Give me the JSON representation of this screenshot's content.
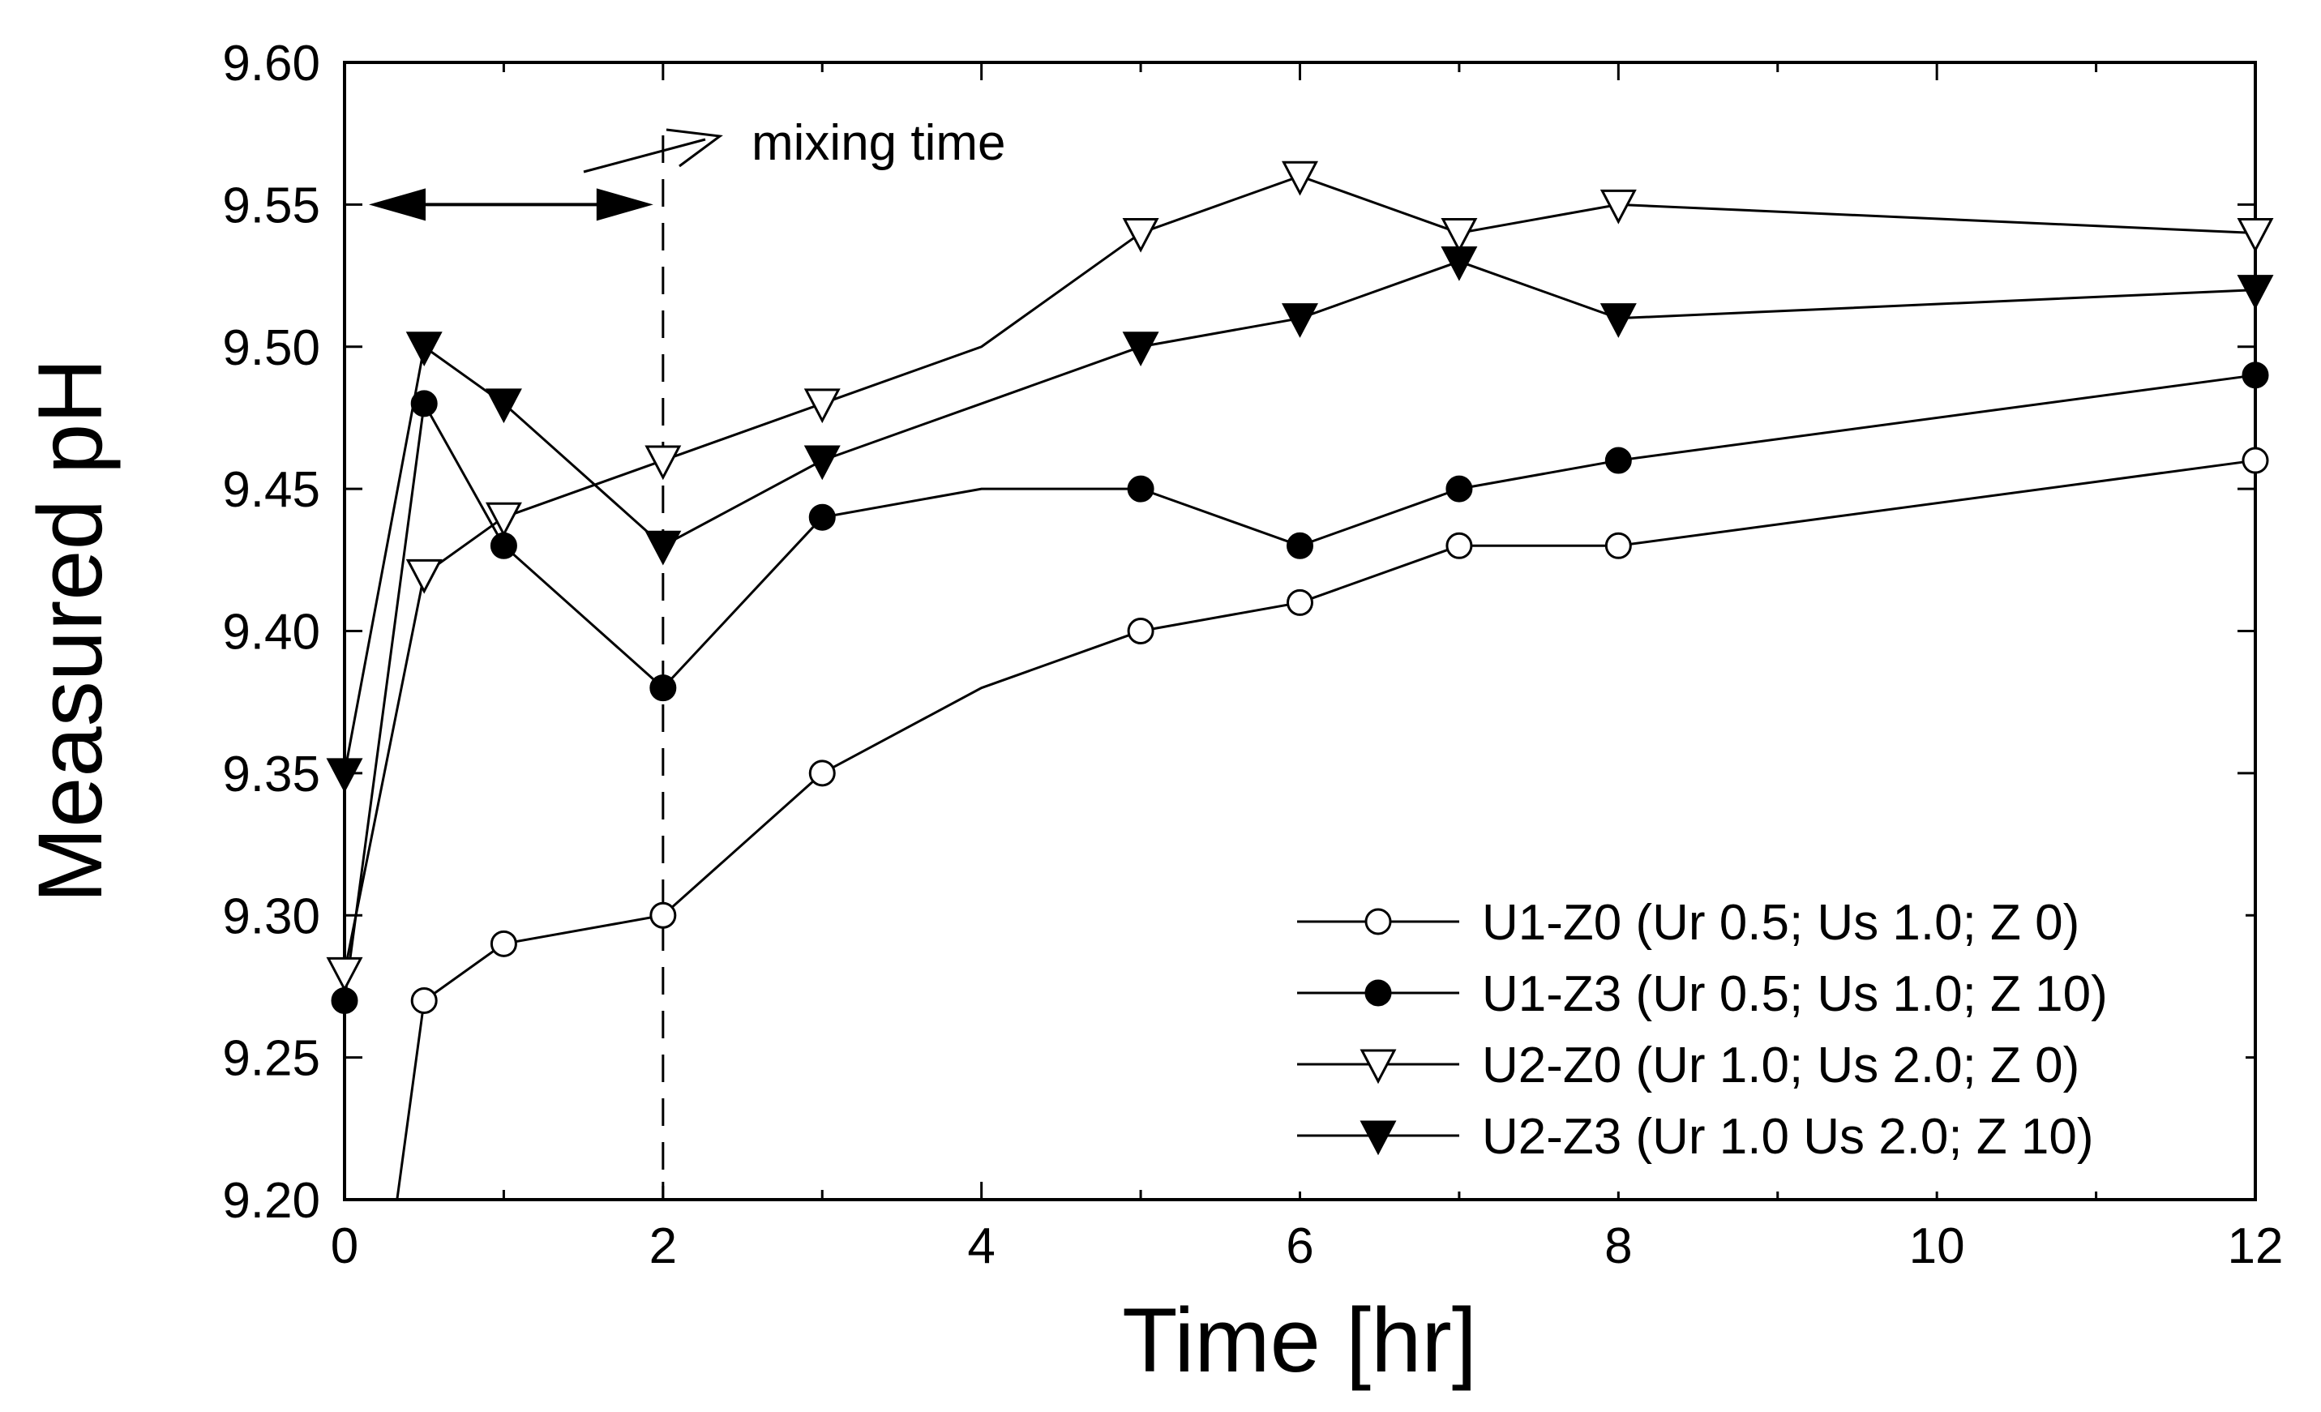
{
  "chart_data": {
    "type": "line",
    "title": "",
    "xlabel": "Time [hr]",
    "ylabel": "Measured pH",
    "xlim": [
      0,
      12
    ],
    "ylim": [
      9.2,
      9.6
    ],
    "xticks": [
      0,
      2,
      4,
      6,
      8,
      10,
      12
    ],
    "yticks": [
      9.2,
      9.25,
      9.3,
      9.35,
      9.4,
      9.45,
      9.5,
      9.55,
      9.6
    ],
    "xtick_labels": [
      "0",
      "2",
      "4",
      "6",
      "8",
      "10",
      "12"
    ],
    "ytick_labels": [
      "9.20",
      "9.25",
      "9.30",
      "9.35",
      "9.40",
      "9.45",
      "9.50",
      "9.55",
      "9.60"
    ],
    "grid": false,
    "legend_position": "bottom-right",
    "series": [
      {
        "name": "U1-Z0 (Ur 0.5; Us 1.0; Z 0)",
        "marker": "circle-open",
        "line_start": [
          0.33,
          9.2
        ],
        "x": [
          0.5,
          1,
          2,
          3,
          4,
          5,
          6,
          7,
          8,
          12
        ],
        "y": [
          9.27,
          9.29,
          9.3,
          9.35,
          9.38,
          9.4,
          9.41,
          9.43,
          9.43,
          9.46
        ],
        "marker_x": [
          0.5,
          1,
          2,
          3,
          5,
          6,
          7,
          8,
          12
        ]
      },
      {
        "name": "U1-Z3 (Ur 0.5; Us 1.0; Z 10)",
        "marker": "circle-filled",
        "x": [
          0,
          0.5,
          1,
          2,
          3,
          4,
          5,
          6,
          7,
          8,
          12
        ],
        "y": [
          9.27,
          9.48,
          9.43,
          9.38,
          9.44,
          9.45,
          9.45,
          9.43,
          9.45,
          9.46,
          9.49
        ],
        "marker_x": [
          0,
          0.5,
          1,
          2,
          3,
          5,
          6,
          7,
          8,
          12
        ]
      },
      {
        "name": "U2-Z0 (Ur 1.0; Us 2.0; Z 0)",
        "marker": "triangle-down-open",
        "x": [
          0,
          0.5,
          1,
          2,
          3,
          4,
          5,
          6,
          7,
          8,
          12
        ],
        "y": [
          9.28,
          9.42,
          9.44,
          9.46,
          9.48,
          9.5,
          9.54,
          9.56,
          9.54,
          9.55,
          9.54
        ],
        "marker_x": [
          0,
          0.5,
          1,
          2,
          3,
          5,
          6,
          7,
          8,
          12
        ]
      },
      {
        "name": "U2-Z3 (Ur 1.0 Us 2.0; Z 10)",
        "marker": "triangle-down-filled",
        "x": [
          0,
          0.5,
          1,
          2,
          3,
          4,
          5,
          6,
          7,
          8,
          12
        ],
        "y": [
          9.35,
          9.5,
          9.48,
          9.43,
          9.46,
          9.48,
          9.5,
          9.51,
          9.53,
          9.51,
          9.52
        ],
        "marker_x": [
          0,
          0.5,
          1,
          2,
          3,
          5,
          6,
          7,
          8,
          12
        ]
      }
    ],
    "annotations": {
      "mixing_time_label": "mixing time",
      "mixing_time_x": 2,
      "mixing_interval": [
        0,
        2
      ],
      "mixing_interval_y": 9.55
    }
  }
}
